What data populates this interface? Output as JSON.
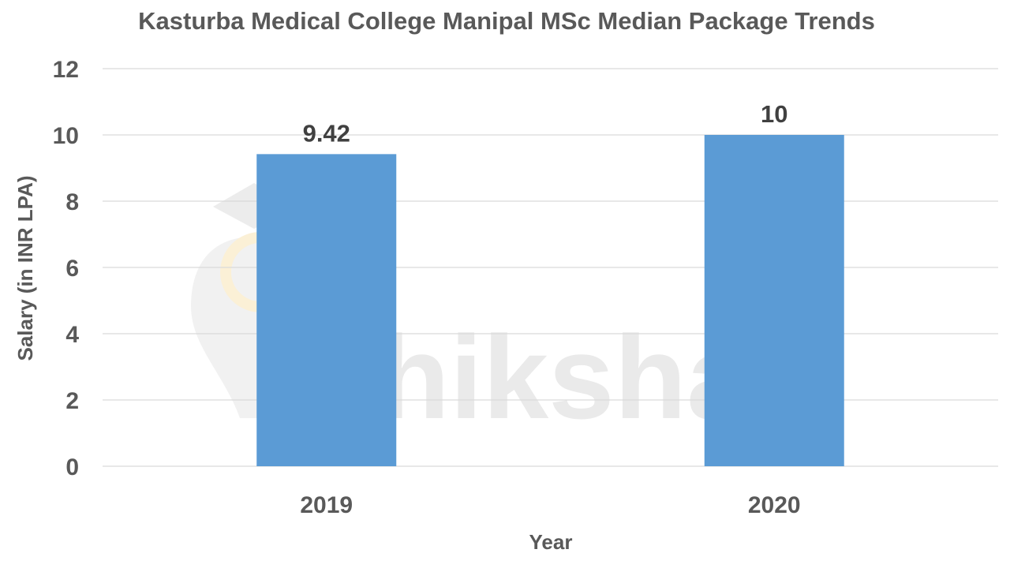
{
  "chart_data": {
    "type": "bar",
    "title": "Kasturba Medical College Manipal MSc Median Package Trends",
    "xlabel": "Year",
    "ylabel": "Salary (in INR LPA)",
    "categories": [
      "2019",
      "2020"
    ],
    "values": [
      9.42,
      10
    ],
    "data_labels": [
      "9.42",
      "10"
    ],
    "ylim": [
      0,
      12
    ],
    "yticks": [
      0,
      2,
      4,
      6,
      8,
      10,
      12
    ],
    "grid": true,
    "legend": "none",
    "bar_color": "#5b9bd5"
  },
  "watermark": {
    "text": "shiksha"
  }
}
